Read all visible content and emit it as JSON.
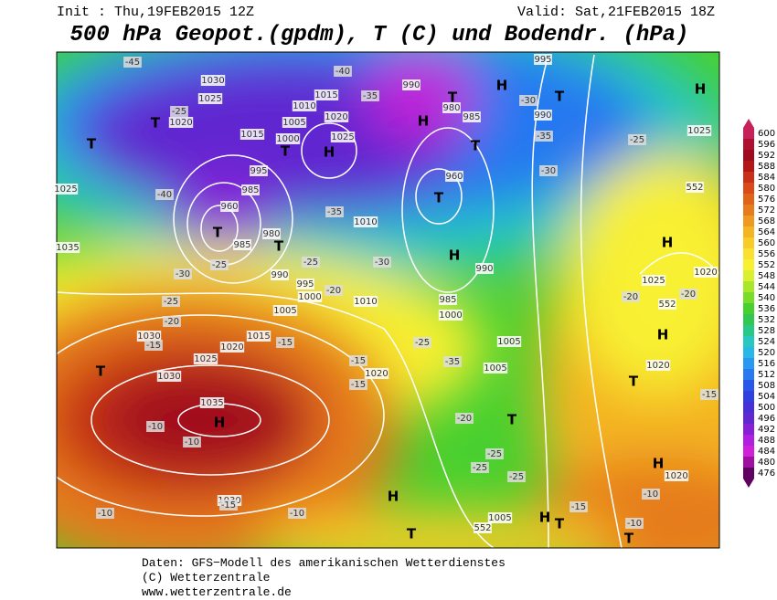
{
  "header": {
    "init": "Init : Thu,19FEB2015 12Z",
    "valid": "Valid: Sat,21FEB2015 18Z",
    "title": "500 hPa Geopot.(gpdm), T (C) und Bodendr. (hPa)"
  },
  "legend": {
    "levels": [
      "600",
      "596",
      "592",
      "588",
      "584",
      "580",
      "576",
      "572",
      "568",
      "564",
      "560",
      "556",
      "552",
      "548",
      "544",
      "540",
      "536",
      "532",
      "528",
      "524",
      "520",
      "516",
      "512",
      "508",
      "504",
      "500",
      "496",
      "492",
      "488",
      "484",
      "480",
      "476"
    ],
    "colors": [
      "#c8205a",
      "#b01030",
      "#a00a1e",
      "#b31616",
      "#c83018",
      "#d94a18",
      "#e06418",
      "#e67c1c",
      "#ee9a20",
      "#f4b424",
      "#f8cc28",
      "#fae030",
      "#f8f030",
      "#d8f030",
      "#a8e828",
      "#78dc28",
      "#48d030",
      "#30c850",
      "#28c888",
      "#28c8c0",
      "#28b8e8",
      "#2898f0",
      "#2878f0",
      "#2858e8",
      "#3040e0",
      "#4830d8",
      "#6028d0",
      "#8820d8",
      "#b020e0",
      "#d020d8",
      "#a010a0",
      "#600060"
    ]
  },
  "map_labels": [
    "-45",
    "1030",
    "1025",
    "1020",
    "-25",
    "T",
    "1015",
    "1010",
    "1015",
    "1005",
    "1000",
    "1020",
    "1025",
    "H",
    "T",
    "995",
    "985",
    "960",
    "T",
    "985",
    "980",
    "T",
    "990",
    "995",
    "1000",
    "1010",
    "1005",
    "990",
    "T",
    "H",
    "980",
    "985",
    "T",
    "960",
    "T",
    "H",
    "T",
    "995",
    "990",
    "H",
    "1025",
    "1010",
    "H",
    "990",
    "985",
    "1000",
    "1005",
    "1005",
    "T",
    "1020",
    "T",
    "H",
    "1025",
    "H",
    "1035",
    "H",
    "1030",
    "1030",
    "1025",
    "1020",
    "1015",
    "T",
    "1030",
    "1035",
    "1025",
    "T",
    "H",
    "T",
    "1005",
    "H",
    "T",
    "T",
    "H",
    "1020",
    "1020",
    "1020",
    "-40",
    "-30",
    "-25",
    "-25",
    "-20",
    "-15",
    "-10",
    "-10",
    "-10",
    "-15",
    "-10",
    "-25",
    "-20",
    "-15",
    "-15",
    "-15",
    "-30",
    "-35",
    "-25",
    "-35",
    "-20",
    "-25",
    "-25",
    "-25",
    "-15",
    "-10",
    "-10",
    "-15",
    "-20",
    "-20",
    "-25",
    "-30",
    "-35",
    "-30",
    "552",
    "552",
    "552",
    "-35",
    "-40"
  ],
  "footer": {
    "line1": "Daten: GFS−Modell des amerikanischen Wetterdienstes",
    "line2": "(C) Wetterzentrale",
    "line3": "www.wetterzentrale.de"
  }
}
